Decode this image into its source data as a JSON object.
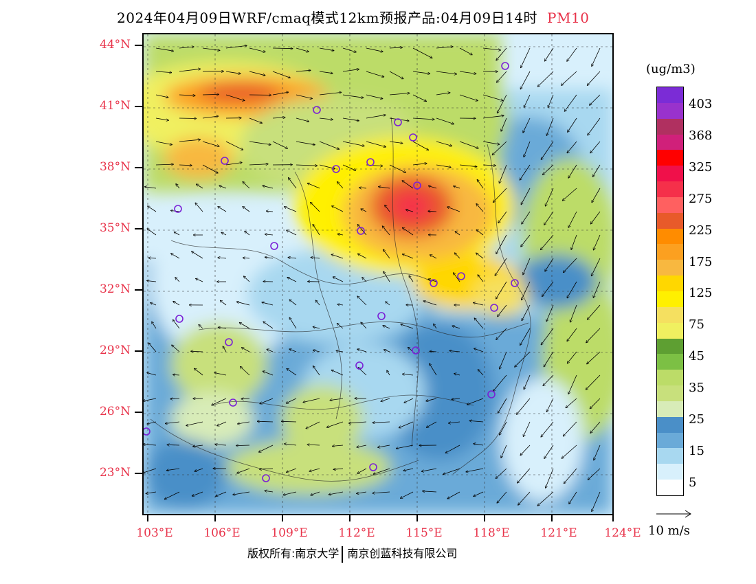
{
  "title": {
    "main": "2024年04月09日WRF/cmaq模式12km预报产品:04月09日14时",
    "pollutant": "PM10"
  },
  "axes": {
    "lat_labels": [
      "44°N",
      "41°N",
      "38°N",
      "35°N",
      "32°N",
      "29°N",
      "26°N",
      "23°N"
    ],
    "lon_labels": [
      "103°E",
      "106°E",
      "109°E",
      "112°E",
      "115°E",
      "118°E",
      "121°E",
      "124°E"
    ]
  },
  "colorbar": {
    "unit": "(ug/m3)",
    "labels": [
      "403",
      "368",
      "325",
      "275",
      "225",
      "175",
      "125",
      "75",
      "45",
      "35",
      "25",
      "15",
      "5"
    ],
    "colors": [
      "#7b2cd6",
      "#9932cc",
      "#b03060",
      "#d0207a",
      "#ff0000",
      "#f0104a",
      "#f5304a",
      "#ff6060",
      "#e85a2a",
      "#ff8c00",
      "#fca020",
      "#f8b840",
      "#ffd700",
      "#fff000",
      "#f5e060",
      "#f0f060",
      "#5e9f32",
      "#7cc044",
      "#bcdc68",
      "#c8e07c",
      "#d8ecb8",
      "#4a8fc8",
      "#6aaad8",
      "#a8d8f0",
      "#d8f0fc",
      "#ffffff"
    ]
  },
  "vector_reference": {
    "label": "10 m/s"
  },
  "footer": {
    "copyright_label": "版权所有:",
    "owner_1": "南京大学",
    "owner_2": "南京创蓝科技有限公司"
  }
}
